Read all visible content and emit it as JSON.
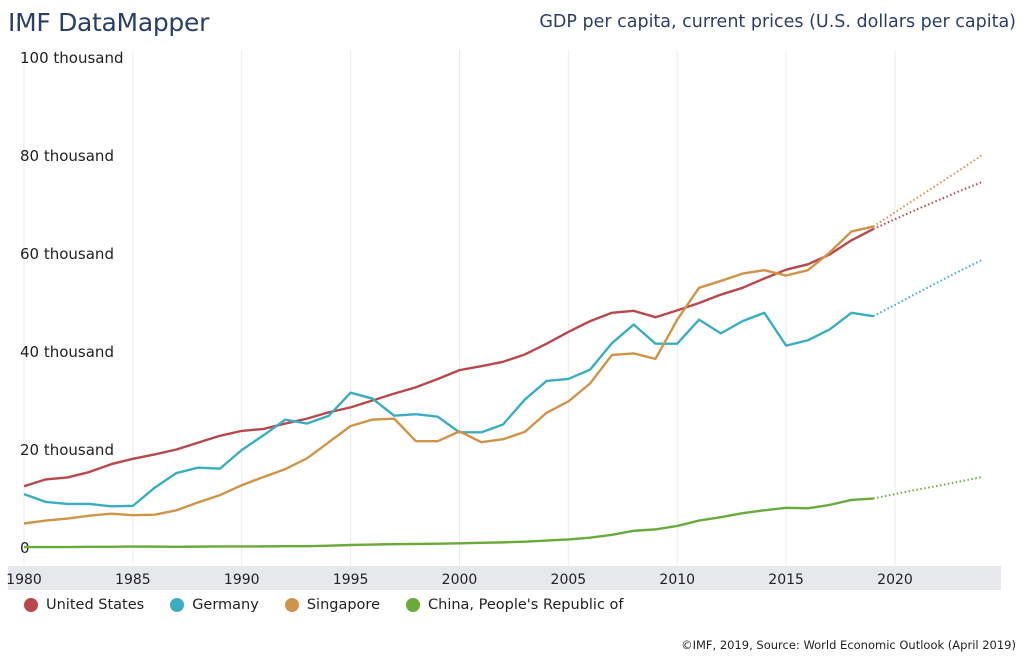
{
  "header": {
    "brand": "IMF DataMapper",
    "chart_title": "GDP per capita, current prices (U.S. dollars per capita)"
  },
  "source": "©IMF, 2019, Source: World Economic Outlook (April 2019)",
  "chart_data": {
    "type": "line",
    "title": "GDP per capita, current prices (U.S. dollars per capita)",
    "xlim": [
      1980,
      2024
    ],
    "ylim": [
      0,
      100000
    ],
    "y_ticks": [
      {
        "v": 0,
        "label": "0"
      },
      {
        "v": 20000,
        "label": "20 thousand"
      },
      {
        "v": 40000,
        "label": "40 thousand"
      },
      {
        "v": 60000,
        "label": "60 thousand"
      },
      {
        "v": 80000,
        "label": "80 thousand"
      },
      {
        "v": 100000,
        "label": "100 thousand"
      }
    ],
    "x_ticks": [
      "1980",
      "1985",
      "1990",
      "1995",
      "2000",
      "2005",
      "2010",
      "2015",
      "2020"
    ],
    "grid": "vertical",
    "legend_position": "bottom",
    "projection_style": "dotted",
    "series": [
      {
        "name": "United States",
        "color": "#b8484c",
        "actual_start": 1980,
        "values": [
          12600,
          14000,
          14400,
          15500,
          17100,
          18200,
          19100,
          20100,
          21500,
          22900,
          23900,
          24300,
          25400,
          26400,
          27700,
          28700,
          30100,
          31500,
          32800,
          34500,
          36300,
          37100,
          38000,
          39500,
          41700,
          44100,
          46300,
          48000,
          48400,
          47100,
          48500,
          50000,
          51700,
          53100,
          55000,
          56800,
          57900,
          59900,
          62800,
          65100
        ],
        "projection": [
          [
            2019,
            65100
          ],
          [
            2020,
            67100
          ],
          [
            2021,
            69100
          ],
          [
            2022,
            71000
          ],
          [
            2023,
            72900
          ],
          [
            2024,
            74700
          ]
        ]
      },
      {
        "name": "Germany",
        "color": "#3aaec0",
        "actual_start": 1980,
        "values": [
          11000,
          9400,
          9000,
          9000,
          8500,
          8600,
          12300,
          15300,
          16400,
          16200,
          20000,
          23000,
          26200,
          25400,
          27000,
          31700,
          30500,
          27000,
          27300,
          26800,
          23600,
          23600,
          25200,
          30300,
          34100,
          34500,
          36400,
          41800,
          45600,
          41700,
          41700,
          46600,
          43800,
          46300,
          48000,
          41300,
          42400,
          44600,
          48000,
          47300
        ],
        "projection": [
          [
            2019,
            47300
          ],
          [
            2020,
            49600
          ],
          [
            2021,
            52000
          ],
          [
            2022,
            54300
          ],
          [
            2023,
            56600
          ],
          [
            2024,
            58800
          ]
        ]
      },
      {
        "name": "Singapore",
        "color": "#cf9447",
        "actual_start": 1980,
        "values": [
          5000,
          5600,
          6000,
          6600,
          7000,
          6700,
          6800,
          7700,
          9300,
          10800,
          12800,
          14500,
          16100,
          18300,
          21600,
          24900,
          26200,
          26400,
          21800,
          21800,
          23800,
          21600,
          22200,
          23700,
          27600,
          29900,
          33600,
          39400,
          39700,
          38600,
          46600,
          53100,
          54500,
          56000,
          56700,
          55600,
          56700,
          60300,
          64600,
          65600
        ],
        "projection": [
          [
            2019,
            65600
          ],
          [
            2020,
            68500
          ],
          [
            2021,
            71400
          ],
          [
            2022,
            74300
          ],
          [
            2023,
            77200
          ],
          [
            2024,
            80200
          ]
        ]
      },
      {
        "name": "China, People's Republic of",
        "color": "#6aaa3a",
        "actual_start": 1980,
        "values": [
          200,
          200,
          200,
          250,
          250,
          300,
          280,
          250,
          280,
          310,
          320,
          330,
          370,
          380,
          470,
          610,
          710,
          780,
          830,
          870,
          960,
          1050,
          1150,
          1290,
          1510,
          1750,
          2100,
          2700,
          3500,
          3800,
          4500,
          5600,
          6300,
          7100,
          7700,
          8200,
          8100,
          8800,
          9800,
          10100
        ],
        "projection": [
          [
            2019,
            10100
          ],
          [
            2020,
            11000
          ],
          [
            2021,
            11900
          ],
          [
            2022,
            12700
          ],
          [
            2023,
            13600
          ],
          [
            2024,
            14500
          ]
        ]
      }
    ]
  }
}
